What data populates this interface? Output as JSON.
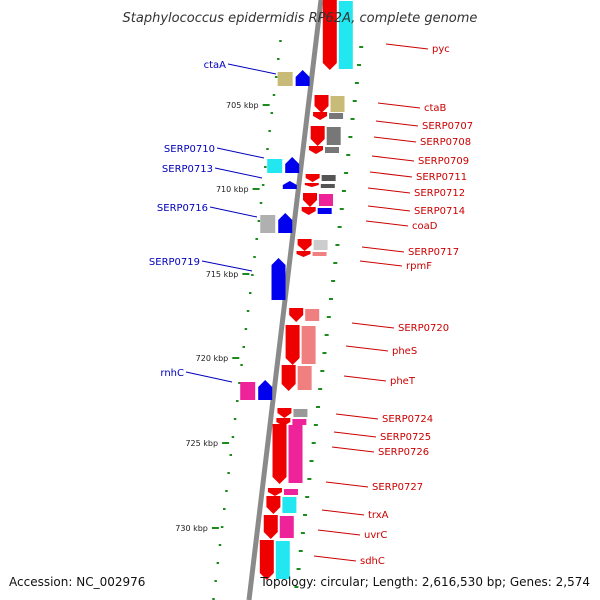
{
  "title": "Staphylococcus epidermidis RP62A, complete genome",
  "footer": {
    "accession": "Accession: NC_002976",
    "summary": "Topology: circular; Length: 2,616,530 bp; Genes: 2,574"
  },
  "scale_ticks": [
    "705 kbp",
    "710 kbp",
    "715 kbp",
    "720 kbp",
    "725 kbp",
    "730 kbp"
  ],
  "colors": {
    "backbone": "#8a8a8a",
    "ring_dots": "#1c8a1c",
    "forward_label": "#0000bb",
    "reverse_label": "#cc0000",
    "forward_arrow": "#0000ee",
    "reverse_arrow": "#ee0000"
  },
  "forward_genes": [
    {
      "label": "ctaA",
      "cog_color": "#c8bb77"
    },
    {
      "label": "SERP0710",
      "cog_color": "#22e6f0"
    },
    {
      "label": "SERP0713",
      "cog_color": ""
    },
    {
      "label": "SERP0716",
      "cog_color": "#b0b0b0"
    },
    {
      "label": "SERP0719",
      "cog_color": ""
    },
    {
      "label": "rnhC",
      "cog_color": "#ee2299"
    }
  ],
  "reverse_genes": [
    {
      "label": "pyc",
      "cog_color": "#22e6f0"
    },
    {
      "label": "ctaB",
      "cog_color": "#c8bb77"
    },
    {
      "label": "SERP0707",
      "cog_color": "#777777"
    },
    {
      "label": "SERP0708",
      "cog_color": "#777777"
    },
    {
      "label": "SERP0709",
      "cog_color": "#777777"
    },
    {
      "label": "SERP0711",
      "cog_color": "#555555"
    },
    {
      "label": "SERP0712",
      "cog_color": "#555555"
    },
    {
      "label": "SERP0714",
      "cog_color": "#ee2299"
    },
    {
      "label": "coaD",
      "cog_color": "#0000ee"
    },
    {
      "label": "SERP0717",
      "cog_color": "#cccccc"
    },
    {
      "label": "rpmF",
      "cog_color": "#f08080"
    },
    {
      "label": "SERP0720",
      "cog_color": "#f08080"
    },
    {
      "label": "pheS",
      "cog_color": "#f08080"
    },
    {
      "label": "pheT",
      "cog_color": "#f08080"
    },
    {
      "label": "SERP0724",
      "cog_color": "#999999"
    },
    {
      "label": "SERP0725",
      "cog_color": "#ee2299"
    },
    {
      "label": "SERP0726",
      "cog_color": "#ee2299"
    },
    {
      "label": "SERP0727",
      "cog_color": "#ee2299"
    },
    {
      "label": "trxA",
      "cog_color": "#22e6f0"
    },
    {
      "label": "uvrC",
      "cog_color": "#ee2299"
    },
    {
      "label": "sdhC",
      "cog_color": "#22e6f0"
    }
  ]
}
